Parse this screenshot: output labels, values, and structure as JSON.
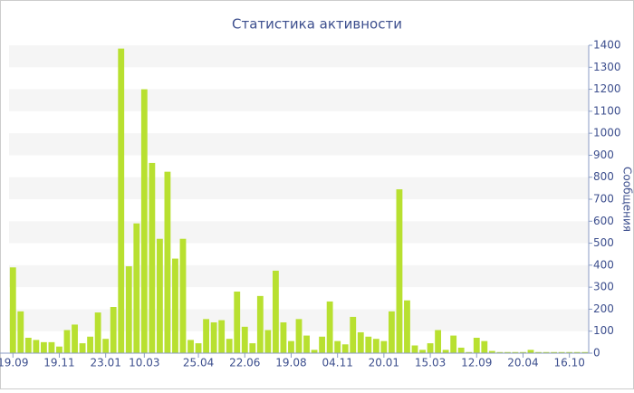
{
  "chart_data": {
    "type": "bar",
    "title": "Статистика активности",
    "y_label": "Сообщения",
    "categories": [
      "19.09",
      null,
      null,
      null,
      null,
      null,
      "19.11",
      null,
      null,
      null,
      null,
      null,
      "23.01",
      null,
      null,
      null,
      null,
      "10.03",
      null,
      null,
      null,
      null,
      null,
      null,
      "25.04",
      null,
      null,
      null,
      null,
      null,
      "22.06",
      null,
      null,
      null,
      null,
      null,
      "19.08",
      null,
      null,
      null,
      null,
      null,
      "04.11",
      null,
      null,
      null,
      null,
      null,
      "20.01",
      null,
      null,
      null,
      null,
      null,
      "15.03",
      null,
      null,
      null,
      null,
      null,
      "12.09",
      null,
      null,
      null,
      null,
      null,
      "20.04",
      null,
      null,
      null,
      null,
      null,
      "16.10",
      null,
      null
    ],
    "values": [
      390,
      190,
      70,
      60,
      50,
      50,
      30,
      105,
      130,
      45,
      75,
      185,
      65,
      210,
      1385,
      395,
      590,
      1200,
      865,
      520,
      825,
      430,
      520,
      60,
      45,
      155,
      140,
      150,
      65,
      280,
      120,
      45,
      260,
      105,
      375,
      140,
      55,
      155,
      80,
      15,
      75,
      235,
      55,
      40,
      165,
      95,
      75,
      65,
      55,
      190,
      745,
      240,
      35,
      15,
      45,
      105,
      15,
      80,
      25,
      5,
      70,
      55,
      10,
      5,
      5,
      5,
      5,
      15,
      5,
      5,
      5,
      5,
      5,
      5,
      5
    ],
    "color": "#b8e030",
    "ylim": [
      0,
      1400
    ],
    "yticks": [
      0,
      100,
      200,
      300,
      400,
      500,
      600,
      700,
      800,
      900,
      1000,
      1100,
      1200,
      1300,
      1400
    ],
    "grid": true
  }
}
